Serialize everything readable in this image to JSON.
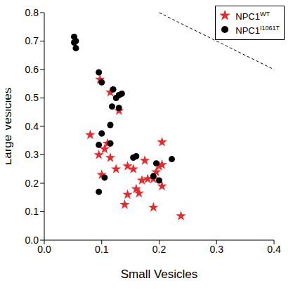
{
  "chart_data": {
    "type": "scatter",
    "x_label": "Small Vesicles",
    "y_label": "Large Vesicles",
    "xlim": [
      0,
      0.4
    ],
    "ylim": [
      0,
      0.8
    ],
    "xticks": [
      {
        "value": 0,
        "label": "0.0"
      },
      0.1,
      0.2,
      0.3,
      0.4
    ],
    "yticks": [
      {
        "value": 0,
        "label": "0.0"
      },
      0.1,
      0.2,
      0.3,
      0.4,
      0.5,
      0.6,
      0.7,
      0.8
    ],
    "grid": false,
    "legend": "top-right",
    "series": [
      {
        "name": "NPC1",
        "superscript": "WT",
        "color": "#e8282a",
        "marker": "star",
        "x": [
          0.097,
          0.08,
          0.095,
          0.105,
          0.11,
          0.115,
          0.115,
          0.13,
          0.1,
          0.125,
          0.145,
          0.155,
          0.14,
          0.145,
          0.16,
          0.165,
          0.17,
          0.175,
          0.18,
          0.19,
          0.195,
          0.19,
          0.2,
          0.205,
          0.205,
          0.205,
          0.238
        ],
        "y": [
          0.565,
          0.37,
          0.3,
          0.32,
          0.34,
          0.29,
          0.52,
          0.455,
          0.23,
          0.25,
          0.26,
          0.25,
          0.125,
          0.16,
          0.18,
          0.165,
          0.21,
          0.28,
          0.215,
          0.215,
          0.24,
          0.115,
          0.26,
          0.19,
          0.265,
          0.345,
          0.085
        ]
      },
      {
        "name": "NPC1",
        "superscript": "I1061T",
        "color": "#000000",
        "marker": "circle",
        "x": [
          0.052,
          0.055,
          0.052,
          0.055,
          0.095,
          0.1,
          0.12,
          0.125,
          0.13,
          0.135,
          0.13,
          0.118,
          0.115,
          0.115,
          0.1,
          0.095,
          0.105,
          0.095,
          0.155,
          0.16,
          0.195,
          0.19,
          0.2,
          0.222
        ],
        "y": [
          0.715,
          0.7,
          0.695,
          0.675,
          0.59,
          0.555,
          0.53,
          0.5,
          0.51,
          0.515,
          0.465,
          0.47,
          0.405,
          0.34,
          0.375,
          0.335,
          0.22,
          0.17,
          0.29,
          0.295,
          0.27,
          0.225,
          0.21,
          0.285
        ]
      }
    ],
    "reference_line": {
      "x": [
        0.2,
        0.4
      ],
      "y": [
        0.8,
        0.6
      ],
      "line_style": "dashed"
    }
  }
}
